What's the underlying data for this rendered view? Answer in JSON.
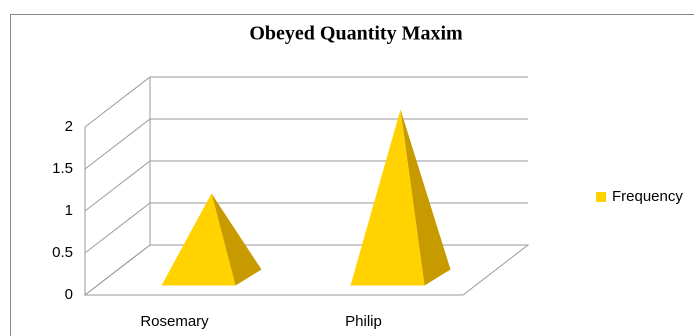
{
  "chart_data": {
    "type": "pyramid3d",
    "title": "Obeyed Quantity Maxim",
    "categories": [
      "Rosemary",
      "Philip"
    ],
    "series": [
      {
        "name": "Frequency",
        "color": "#ffd200",
        "values": [
          1,
          2
        ]
      }
    ],
    "ylim": [
      0,
      2
    ],
    "yticks": [
      0,
      0.5,
      1,
      1.5,
      2
    ],
    "grid": true,
    "legend": "right"
  }
}
